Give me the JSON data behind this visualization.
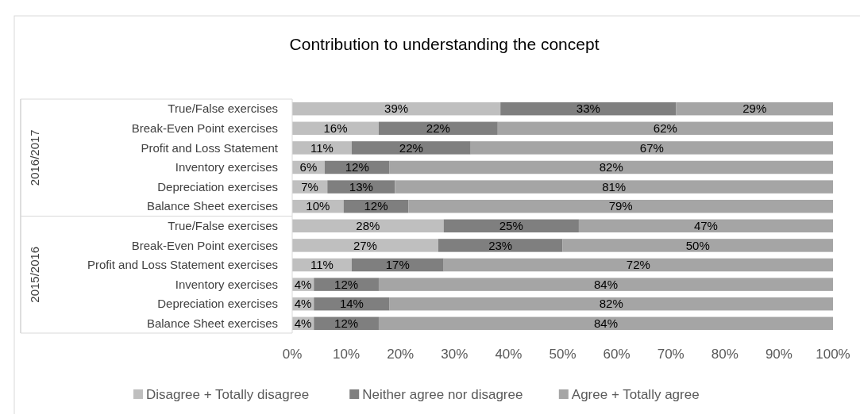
{
  "chart_data": {
    "type": "bar",
    "orientation": "horizontal",
    "stacked": true,
    "title": "Contribution to understanding the concept",
    "categories": [
      "True/False exercises",
      "Break-Even Point exercises",
      "Profit and Loss Statement",
      "Inventory exercises",
      "Depreciation exercises",
      "Balance Sheet exercises",
      "True/False exercises",
      "Break-Even Point exercises",
      "Profit and Loss Statement exercises",
      "Inventory exercises",
      "Depreciation exercises",
      "Balance Sheet exercises"
    ],
    "series": [
      {
        "name": "Disagree + Totally disagree",
        "color": "#bfbfbf",
        "values": [
          38.5,
          16,
          11,
          6,
          6.5,
          9.5,
          28,
          27,
          11,
          4,
          4,
          4
        ],
        "value_labels": [
          "39%",
          "16%",
          "11%",
          "6%",
          "7%",
          "10%",
          "28%",
          "27%",
          "11%",
          "4%",
          "4%",
          "4%"
        ]
      },
      {
        "name": "Neither agree nor disagree",
        "color": "#7f7f7f",
        "values": [
          32.5,
          22,
          22,
          12,
          12.5,
          12,
          25,
          23,
          17,
          12,
          14,
          12
        ],
        "value_labels": [
          "33%",
          "22%",
          "22%",
          "12%",
          "13%",
          "12%",
          "25%",
          "23%",
          "17%",
          "12%",
          "14%",
          "12%"
        ]
      },
      {
        "name": "Agree + Totally agree",
        "color": "#a5a5a5",
        "values": [
          29,
          62,
          67,
          82,
          81,
          78.5,
          47,
          50,
          72,
          84,
          82,
          84
        ],
        "value_labels": [
          "29%",
          "62%",
          "67%",
          "82%",
          "81%",
          "79%",
          "47%",
          "50%",
          "72%",
          "84%",
          "82%",
          "84%"
        ]
      }
    ],
    "xlim": [
      0,
      100
    ],
    "xticks": [
      {
        "value": 0,
        "label": "0%"
      },
      {
        "value": 10,
        "label": "10%"
      },
      {
        "value": 20,
        "label": "20%"
      },
      {
        "value": 30,
        "label": "30%"
      },
      {
        "value": 40,
        "label": "40%"
      },
      {
        "value": 50,
        "label": "50%"
      },
      {
        "value": 60,
        "label": "60%"
      },
      {
        "value": 70,
        "label": "70%"
      },
      {
        "value": 80,
        "label": "80%"
      },
      {
        "value": 90,
        "label": "90%"
      },
      {
        "value": 100,
        "label": "100%"
      }
    ],
    "annotations": [
      "2016/2017",
      "2015/2016"
    ],
    "legend": "bottom"
  }
}
